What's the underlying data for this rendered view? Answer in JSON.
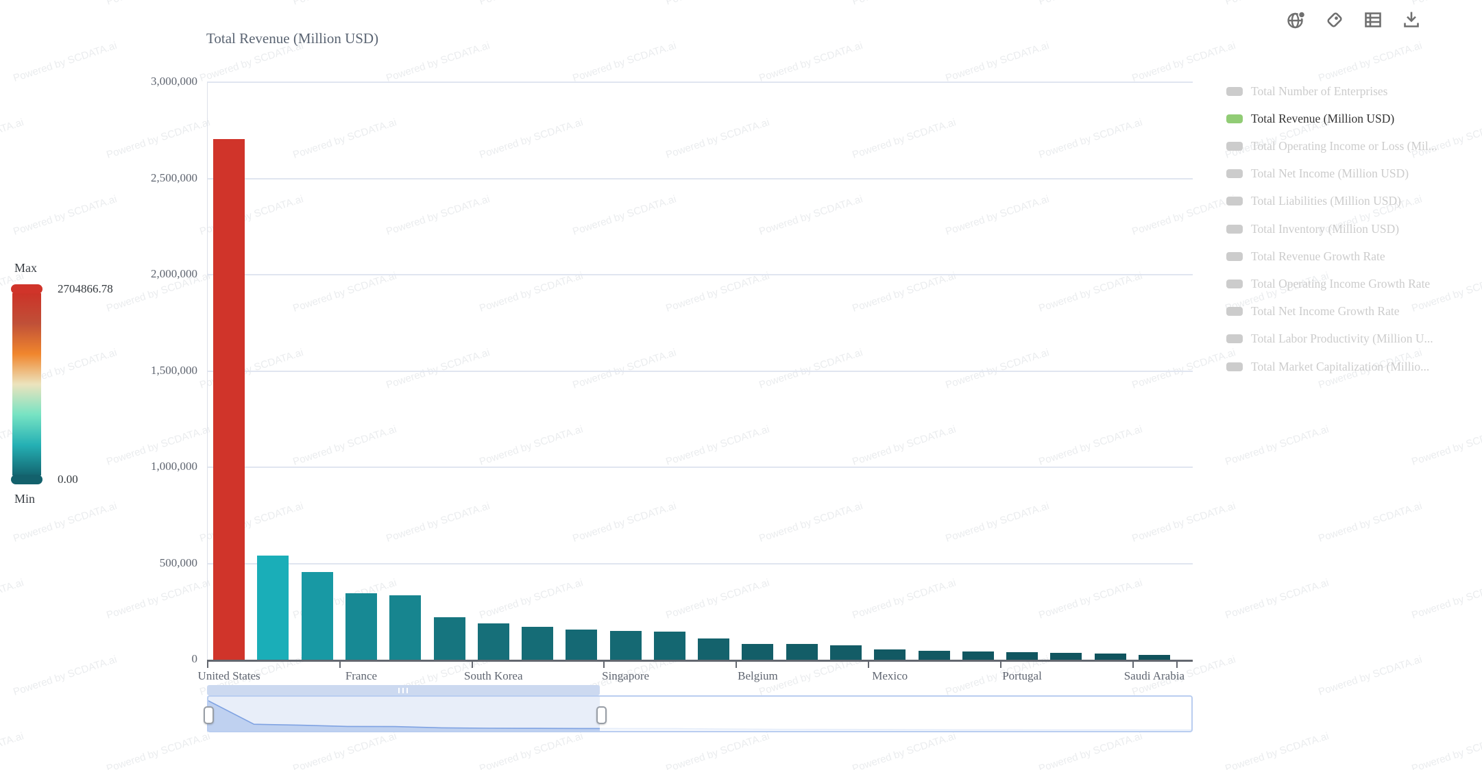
{
  "watermark": {
    "text": "Powered by SCDATA.ai"
  },
  "title": "Total Revenue (Million USD)",
  "toolbar": {
    "icons": [
      "globe",
      "tag",
      "data-view",
      "download"
    ]
  },
  "visual_map": {
    "max_label": "Max",
    "min_label": "Min",
    "max_value": "2704866.78",
    "min_value": "0.00",
    "max_color": "#d0342a",
    "min_color": "#13616c",
    "gradient": [
      "#cc3328",
      "#c05038",
      "#f0862d",
      "#ece3bd",
      "#77e3c3",
      "#25b0b4",
      "#136671"
    ]
  },
  "legend": {
    "active_color": "#91cc75",
    "inactive_color": "#cccccc",
    "items": [
      {
        "label": "Total Number of Enterprises",
        "active": false
      },
      {
        "label": "Total Revenue (Million USD)",
        "active": true
      },
      {
        "label": "Total Operating Income or Loss (Mil...",
        "active": false
      },
      {
        "label": "Total Net Income (Million USD)",
        "active": false
      },
      {
        "label": "Total Liabilities (Million USD)",
        "active": false
      },
      {
        "label": "Total Inventory (Million USD)",
        "active": false
      },
      {
        "label": "Total Revenue Growth Rate",
        "active": false
      },
      {
        "label": "Total Operating Income Growth Rate",
        "active": false
      },
      {
        "label": "Total Net Income Growth Rate",
        "active": false
      },
      {
        "label": "Total Labor Productivity (Million U...",
        "active": false
      },
      {
        "label": "Total Market Capitalization (Millio...",
        "active": false
      }
    ]
  },
  "chart_data": {
    "type": "bar",
    "title": "Total Revenue (Million USD)",
    "categories": [
      "United States",
      "",
      "",
      "France",
      "",
      "",
      "South Korea",
      "",
      "",
      "Singapore",
      "",
      "",
      "Belgium",
      "",
      "",
      "Mexico",
      "",
      "",
      "Portugal",
      "",
      "",
      "Saudi Arabia"
    ],
    "values": [
      2704866.78,
      540000,
      455000,
      345000,
      333000,
      222000,
      187000,
      170000,
      158000,
      151000,
      145000,
      111000,
      83000,
      81000,
      75000,
      53000,
      45000,
      41000,
      38000,
      36000,
      33000,
      26000
    ],
    "bar_colors": [
      "#d0342a",
      "#1aaeb8",
      "#1899a4",
      "#178994",
      "#17858f",
      "#16757f",
      "#166f79",
      "#156c76",
      "#156974",
      "#156973",
      "#146771",
      "#14626c",
      "#135e68",
      "#135d67",
      "#135c66",
      "#125963",
      "#125862",
      "#115761",
      "#115660",
      "#11555f",
      "#10545e",
      "#10525c"
    ],
    "xlabel": "",
    "ylabel": "",
    "ylim": [
      0,
      3000000
    ],
    "yticks": [
      "0",
      "500,000",
      "1,000,000",
      "1,500,000",
      "2,000,000",
      "2,500,000",
      "3,000,000"
    ],
    "grid": "horizontal",
    "legend_position": "right"
  },
  "slider": {
    "selected_range_percent": [
      0,
      40
    ]
  }
}
